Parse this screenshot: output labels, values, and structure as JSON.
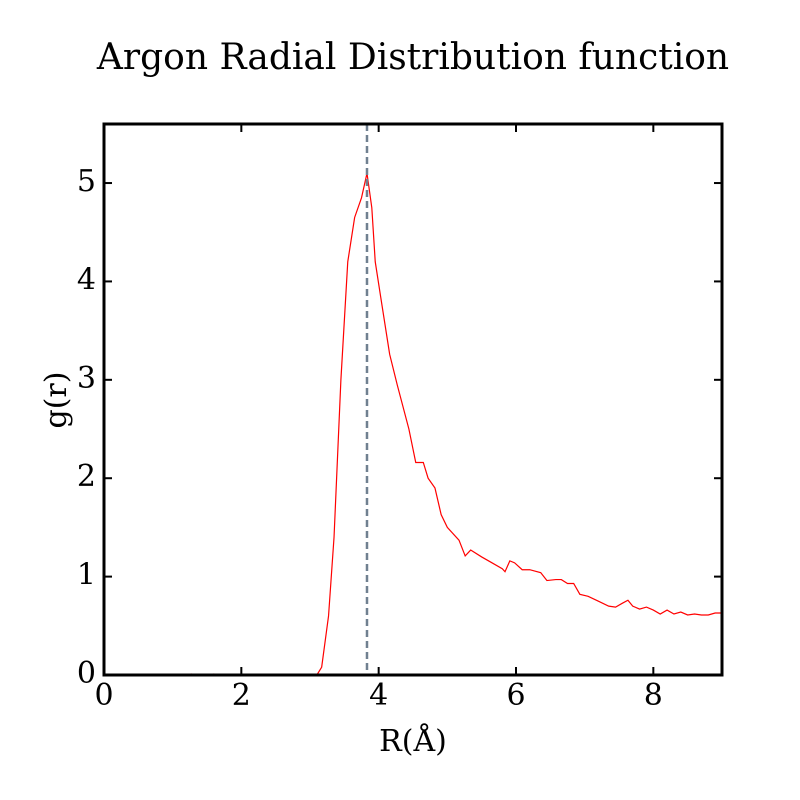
{
  "chart_data": {
    "type": "line",
    "title": "Argon Radial Distribution function",
    "x_label": "R(Å)",
    "y_label": "g(r)",
    "x": [
      0,
      1.2,
      1.27,
      1.35,
      1.55,
      1.6,
      1.65,
      3.1,
      3.17,
      3.27,
      3.35,
      3.45,
      3.55,
      3.65,
      3.75,
      3.83,
      3.9,
      3.95,
      4.05,
      4.16,
      4.27,
      4.44,
      4.54,
      4.65,
      4.72,
      4.82,
      4.91,
      5.0,
      5.17,
      5.26,
      5.34,
      5.5,
      5.65,
      5.8,
      5.84,
      5.91,
      5.98,
      6.09,
      6.2,
      6.36,
      6.45,
      6.58,
      6.66,
      6.75,
      6.84,
      6.93,
      7.05,
      7.2,
      7.35,
      7.45,
      7.55,
      7.63,
      7.7,
      7.8,
      7.9,
      8.0,
      8.1,
      8.2,
      8.3,
      8.4,
      8.5,
      8.6,
      8.7,
      8.8,
      8.9,
      9.0
    ],
    "series": [
      {
        "color": "#ff0000",
        "values": [
          0,
          0,
          0.01,
          0,
          0,
          0.01,
          0,
          0,
          0.08,
          0.6,
          1.4,
          3.0,
          4.2,
          4.65,
          4.85,
          5.1,
          4.75,
          4.2,
          3.75,
          3.26,
          2.95,
          2.5,
          2.16,
          2.16,
          2.0,
          1.9,
          1.63,
          1.5,
          1.37,
          1.21,
          1.27,
          1.2,
          1.14,
          1.08,
          1.05,
          1.16,
          1.14,
          1.07,
          1.07,
          1.04,
          0.96,
          0.97,
          0.97,
          0.93,
          0.93,
          0.82,
          0.8,
          0.75,
          0.7,
          0.69,
          0.73,
          0.76,
          0.7,
          0.67,
          0.69,
          0.66,
          0.62,
          0.66,
          0.62,
          0.64,
          0.61,
          0.62,
          0.61,
          0.61,
          0.63,
          0.63
        ]
      }
    ],
    "vline": {
      "x": 3.83,
      "color": "#708090"
    },
    "xlim": [
      0,
      9
    ],
    "xticks": [
      0,
      2,
      4,
      6,
      8
    ],
    "ylim": [
      0,
      5.6
    ],
    "yticks": [
      0,
      1,
      2,
      3,
      4,
      5
    ],
    "grid": false
  }
}
